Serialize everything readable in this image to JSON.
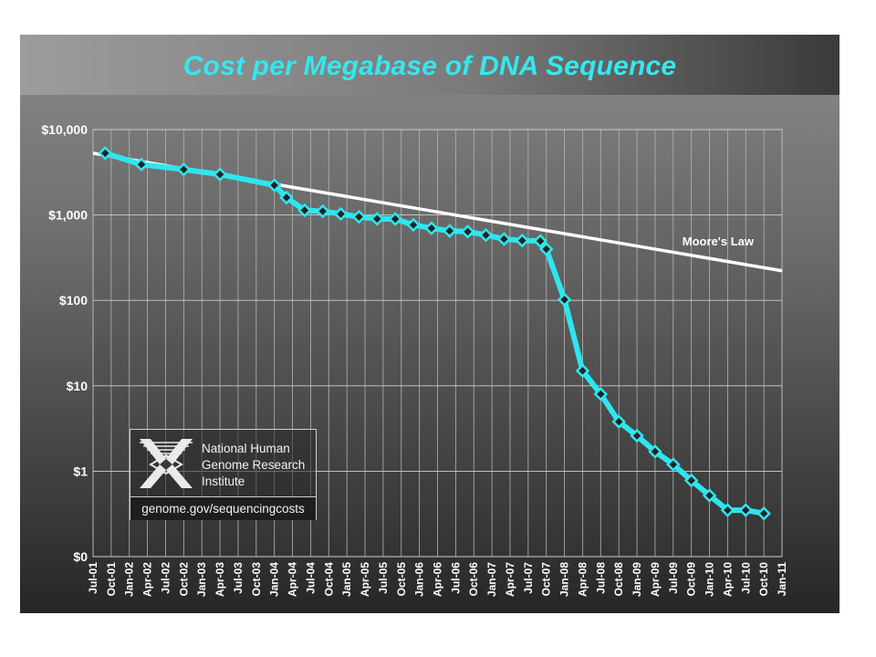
{
  "chart_data": {
    "type": "line",
    "title": "Cost per Megabase of DNA Sequence",
    "xlabel": "",
    "ylabel": "",
    "yscale": "log",
    "ylim": [
      0.1,
      10000
    ],
    "y_tick_values": [
      0.1,
      1,
      10,
      100,
      1000,
      10000
    ],
    "y_tick_labels": [
      "$0",
      "$1",
      "$10",
      "$100",
      "$1,000",
      "$10,000"
    ],
    "x_tick_labels": [
      "Jul-01",
      "Oct-01",
      "Jan-02",
      "Apr-02",
      "Jul-02",
      "Oct-02",
      "Jan-03",
      "Apr-03",
      "Jul-03",
      "Oct-03",
      "Jan-04",
      "Apr-04",
      "Jul-04",
      "Oct-04",
      "Jan-05",
      "Apr-05",
      "Jul-05",
      "Oct-05",
      "Jan-06",
      "Apr-06",
      "Jul-06",
      "Oct-06",
      "Jan-07",
      "Apr-07",
      "Jul-07",
      "Oct-07",
      "Jan-08",
      "Apr-08",
      "Jul-08",
      "Oct-08",
      "Jan-09",
      "Apr-09",
      "Jul-09",
      "Oct-09",
      "Jan-10",
      "Apr-10",
      "Jul-10",
      "Oct-10",
      "Jan-11"
    ],
    "grid": true,
    "colors": {
      "series": "#2ee6ee",
      "moores_law": "#ffffff",
      "title": "#33e8f0",
      "marker": "#222222"
    },
    "series": [
      {
        "name": "",
        "x": [
          "Sep-01",
          "Mar-02",
          "Oct-02",
          "Apr-03",
          "Jan-04",
          "Mar-04",
          "Jun-04",
          "Sep-04",
          "Dec-04",
          "Mar-05",
          "Jun-05",
          "Sep-05",
          "Dec-05",
          "Mar-06",
          "Jun-06",
          "Sep-06",
          "Dec-06",
          "Mar-07",
          "Jun-07",
          "Sep-07",
          "Oct-07",
          "Jan-08",
          "Apr-08",
          "Jul-08",
          "Oct-08",
          "Jan-09",
          "Apr-09",
          "Jul-09",
          "Oct-09",
          "Jan-10",
          "Apr-10",
          "Jul-10",
          "Oct-10"
        ],
        "values": [
          5292,
          3899,
          3413,
          2987,
          2230,
          1598,
          1135,
          1107,
          1028,
          951,
          899,
          898,
          766,
          699,
          651,
          638,
          582,
          522,
          502,
          496,
          398,
          102,
          15,
          8,
          3.8,
          2.6,
          1.7,
          1.2,
          0.78,
          0.52,
          0.35,
          0.35,
          0.32
        ]
      },
      {
        "name": "Moore's Law",
        "x": [
          "Jul-01",
          "Jan-11"
        ],
        "values": [
          5292,
          222
        ]
      }
    ],
    "annotations": [
      "Moore's Law"
    ]
  },
  "branding": {
    "organization_lines": [
      "National Human",
      "Genome Research",
      "Institute"
    ],
    "url": "genome.gov/sequencingcosts",
    "logo_icon": "nhgri-dna-logo-icon"
  }
}
